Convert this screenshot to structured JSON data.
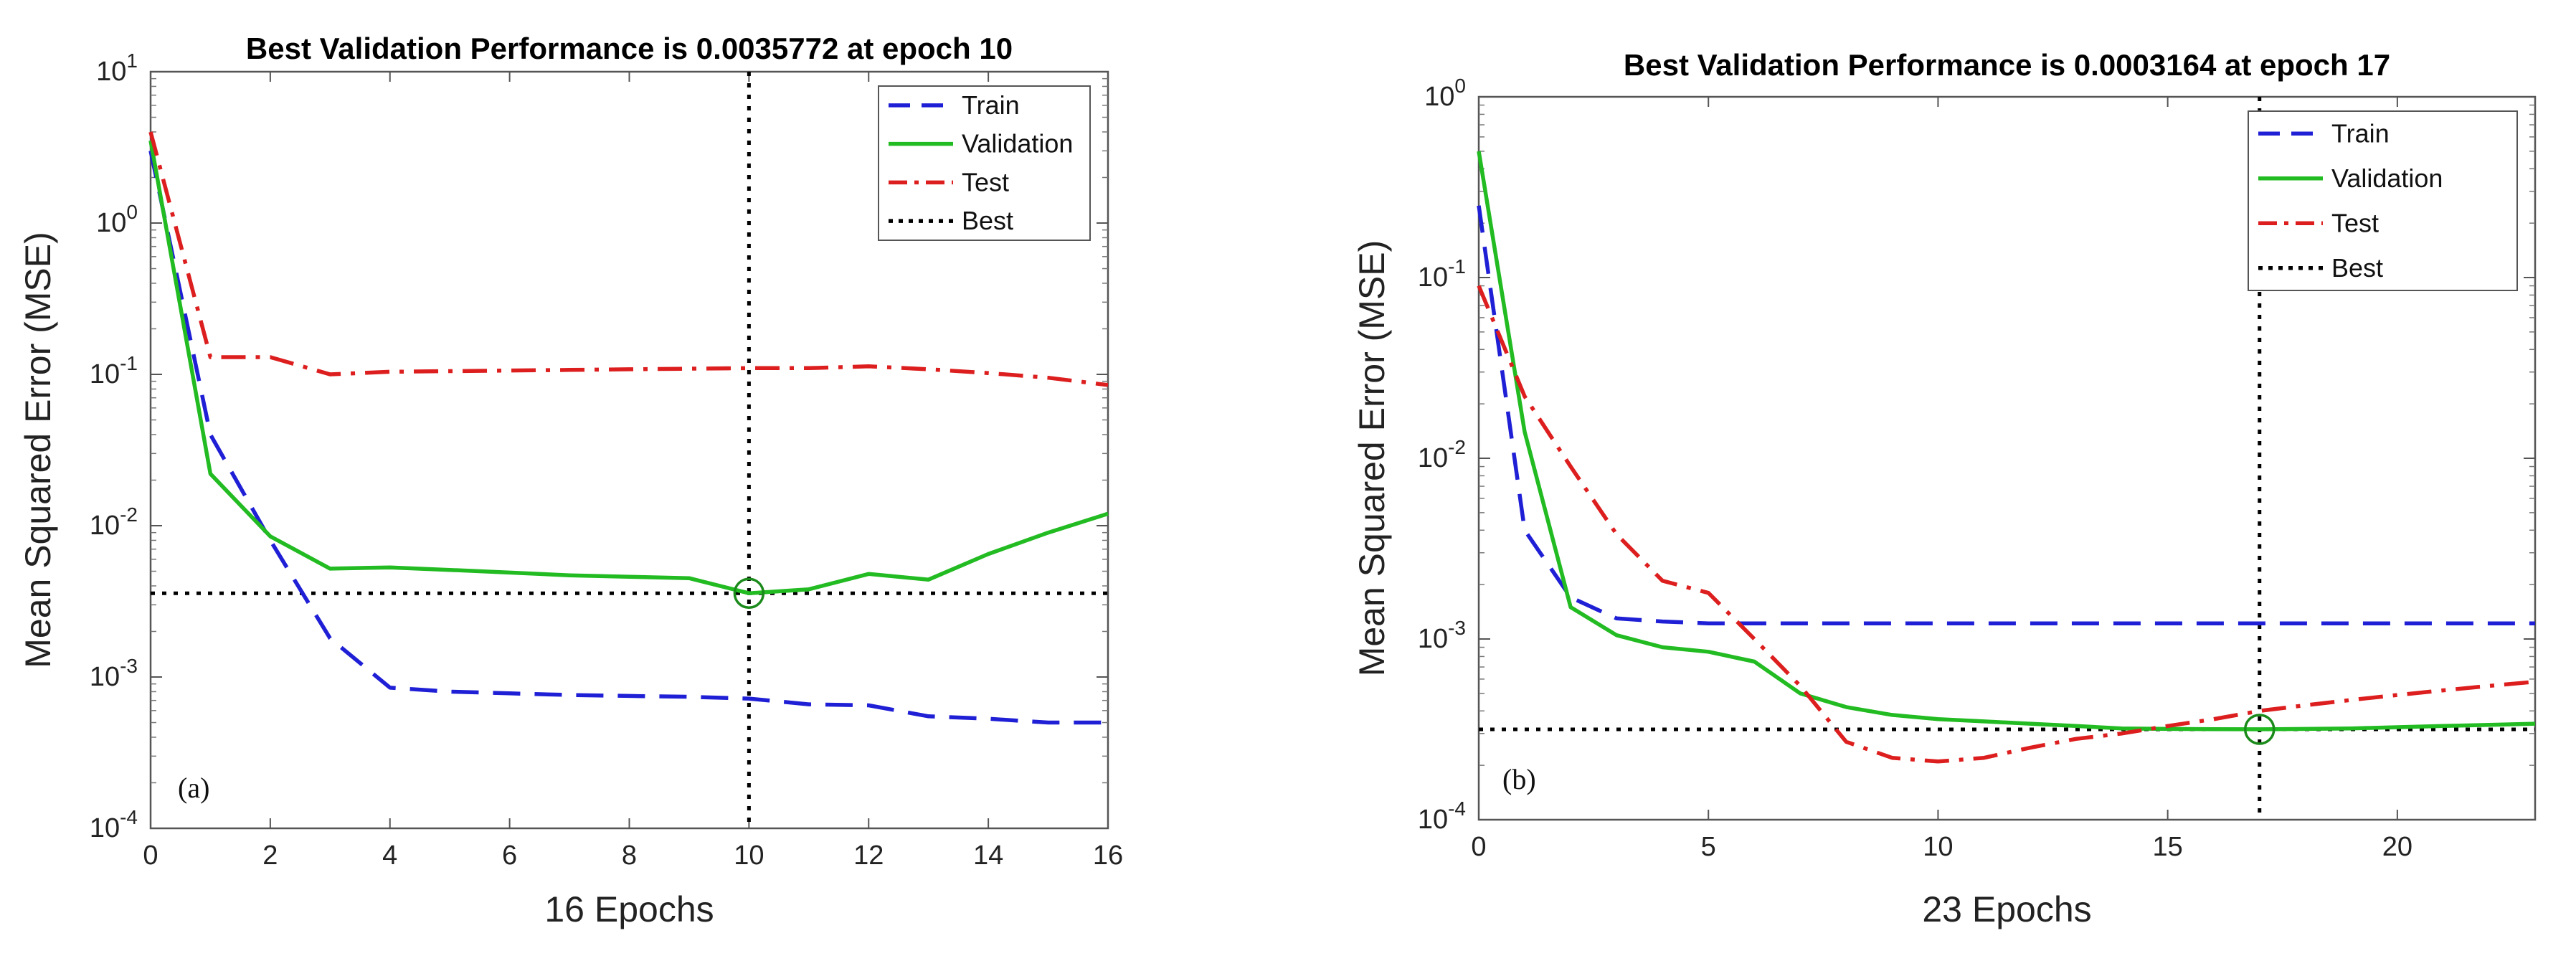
{
  "chart_data": [
    {
      "type": "line",
      "panel_label": "(a)",
      "title": "Best Validation Performance is 0.0035772 at epoch 10",
      "xlabel": "16 Epochs",
      "ylabel": "Mean Squared Error  (MSE)",
      "y_scale": "log",
      "xlim": [
        0,
        16
      ],
      "ylim": [
        0.0001,
        10
      ],
      "x_ticks": [
        0,
        2,
        4,
        6,
        8,
        10,
        12,
        14,
        16
      ],
      "y_ticks": [
        {
          "value": 0.0001,
          "base": "10",
          "exp": "-4"
        },
        {
          "value": 0.001,
          "base": "10",
          "exp": "-3"
        },
        {
          "value": 0.01,
          "base": "10",
          "exp": "-2"
        },
        {
          "value": 0.1,
          "base": "10",
          "exp": "-1"
        },
        {
          "value": 1,
          "base": "10",
          "exp": "0"
        },
        {
          "value": 10,
          "base": "10",
          "exp": "1"
        }
      ],
      "legend_position": "top-right",
      "best": {
        "epoch": 10,
        "value": 0.0035772
      },
      "series": [
        {
          "name": "Train",
          "color": "#1f1fd6",
          "dash": "dash",
          "x": [
            0,
            1,
            2,
            3,
            4,
            5,
            6,
            7,
            8,
            9,
            10,
            11,
            12,
            13,
            14,
            15,
            16
          ],
          "values": [
            3.0,
            0.04,
            0.008,
            0.0018,
            0.00085,
            0.0008,
            0.00078,
            0.00076,
            0.00075,
            0.00074,
            0.00072,
            0.00066,
            0.00065,
            0.00055,
            0.00053,
            0.0005,
            0.0005
          ]
        },
        {
          "name": "Validation",
          "color": "#22bb22",
          "dash": "solid",
          "x": [
            0,
            1,
            2,
            3,
            4,
            5,
            6,
            7,
            8,
            9,
            10,
            11,
            12,
            13,
            14,
            15,
            16
          ],
          "values": [
            3.5,
            0.022,
            0.0085,
            0.0052,
            0.0053,
            0.0051,
            0.0049,
            0.0047,
            0.0046,
            0.0045,
            0.0035772,
            0.0038,
            0.0048,
            0.0044,
            0.0065,
            0.009,
            0.012
          ]
        },
        {
          "name": "Test",
          "color": "#dd1e1e",
          "dash": "dashdot",
          "x": [
            0,
            1,
            2,
            3,
            4,
            5,
            6,
            7,
            8,
            9,
            10,
            11,
            12,
            13,
            14,
            15,
            16
          ],
          "values": [
            4.0,
            0.13,
            0.13,
            0.1,
            0.104,
            0.105,
            0.106,
            0.107,
            0.108,
            0.109,
            0.11,
            0.11,
            0.113,
            0.108,
            0.102,
            0.095,
            0.085
          ]
        },
        {
          "name": "Best",
          "color": "#000000",
          "dash": "dot",
          "kind": "best"
        }
      ]
    },
    {
      "type": "line",
      "panel_label": "(b)",
      "title": "Best Validation Performance is 0.0003164 at epoch 17",
      "xlabel": "23 Epochs",
      "ylabel": "Mean Squared Error  (MSE)",
      "y_scale": "log",
      "xlim": [
        0,
        23
      ],
      "ylim": [
        0.0001,
        1
      ],
      "x_ticks": [
        0,
        5,
        10,
        15,
        20
      ],
      "y_ticks": [
        {
          "value": 0.0001,
          "base": "10",
          "exp": "-4"
        },
        {
          "value": 0.001,
          "base": "10",
          "exp": "-3"
        },
        {
          "value": 0.01,
          "base": "10",
          "exp": "-2"
        },
        {
          "value": 0.1,
          "base": "10",
          "exp": "-1"
        },
        {
          "value": 1,
          "base": "10",
          "exp": "0"
        }
      ],
      "legend_position": "top-right",
      "best": {
        "epoch": 17,
        "value": 0.0003164
      },
      "series": [
        {
          "name": "Train",
          "color": "#1f1fd6",
          "dash": "dash",
          "x": [
            0,
            1,
            2,
            3,
            4,
            5,
            6,
            7,
            8,
            9,
            10,
            11,
            12,
            13,
            14,
            15,
            16,
            17,
            18,
            19,
            20,
            21,
            22,
            23
          ],
          "values": [
            0.25,
            0.004,
            0.0017,
            0.0013,
            0.00125,
            0.00122,
            0.00122,
            0.00122,
            0.00122,
            0.00122,
            0.00122,
            0.00122,
            0.00122,
            0.00122,
            0.00122,
            0.00122,
            0.00122,
            0.00122,
            0.00122,
            0.00122,
            0.00122,
            0.00122,
            0.00122,
            0.00122
          ]
        },
        {
          "name": "Validation",
          "color": "#22bb22",
          "dash": "solid",
          "x": [
            0,
            1,
            2,
            3,
            4,
            5,
            6,
            7,
            8,
            9,
            10,
            11,
            12,
            13,
            14,
            15,
            16,
            17,
            18,
            19,
            20,
            21,
            22,
            23
          ],
          "values": [
            0.5,
            0.014,
            0.0015,
            0.00105,
            0.0009,
            0.00085,
            0.00075,
            0.0005,
            0.00042,
            0.00038,
            0.00036,
            0.00035,
            0.00034,
            0.00033,
            0.00032,
            0.000318,
            0.000317,
            0.0003164,
            0.000318,
            0.00032,
            0.000325,
            0.00033,
            0.000335,
            0.00034
          ]
        },
        {
          "name": "Test",
          "color": "#dd1e1e",
          "dash": "dashdot",
          "x": [
            0,
            1,
            2,
            3,
            4,
            5,
            6,
            7,
            8,
            9,
            10,
            11,
            12,
            13,
            14,
            15,
            16,
            17,
            18,
            19,
            20,
            21,
            22,
            23
          ],
          "values": [
            0.09,
            0.022,
            0.009,
            0.0038,
            0.0021,
            0.0018,
            0.001,
            0.00055,
            0.00027,
            0.00022,
            0.00021,
            0.00022,
            0.00025,
            0.00028,
            0.0003,
            0.00033,
            0.00036,
            0.0004,
            0.00043,
            0.00046,
            0.00049,
            0.00052,
            0.00055,
            0.00058
          ]
        },
        {
          "name": "Best",
          "color": "#000000",
          "dash": "dot",
          "kind": "best"
        }
      ]
    }
  ]
}
